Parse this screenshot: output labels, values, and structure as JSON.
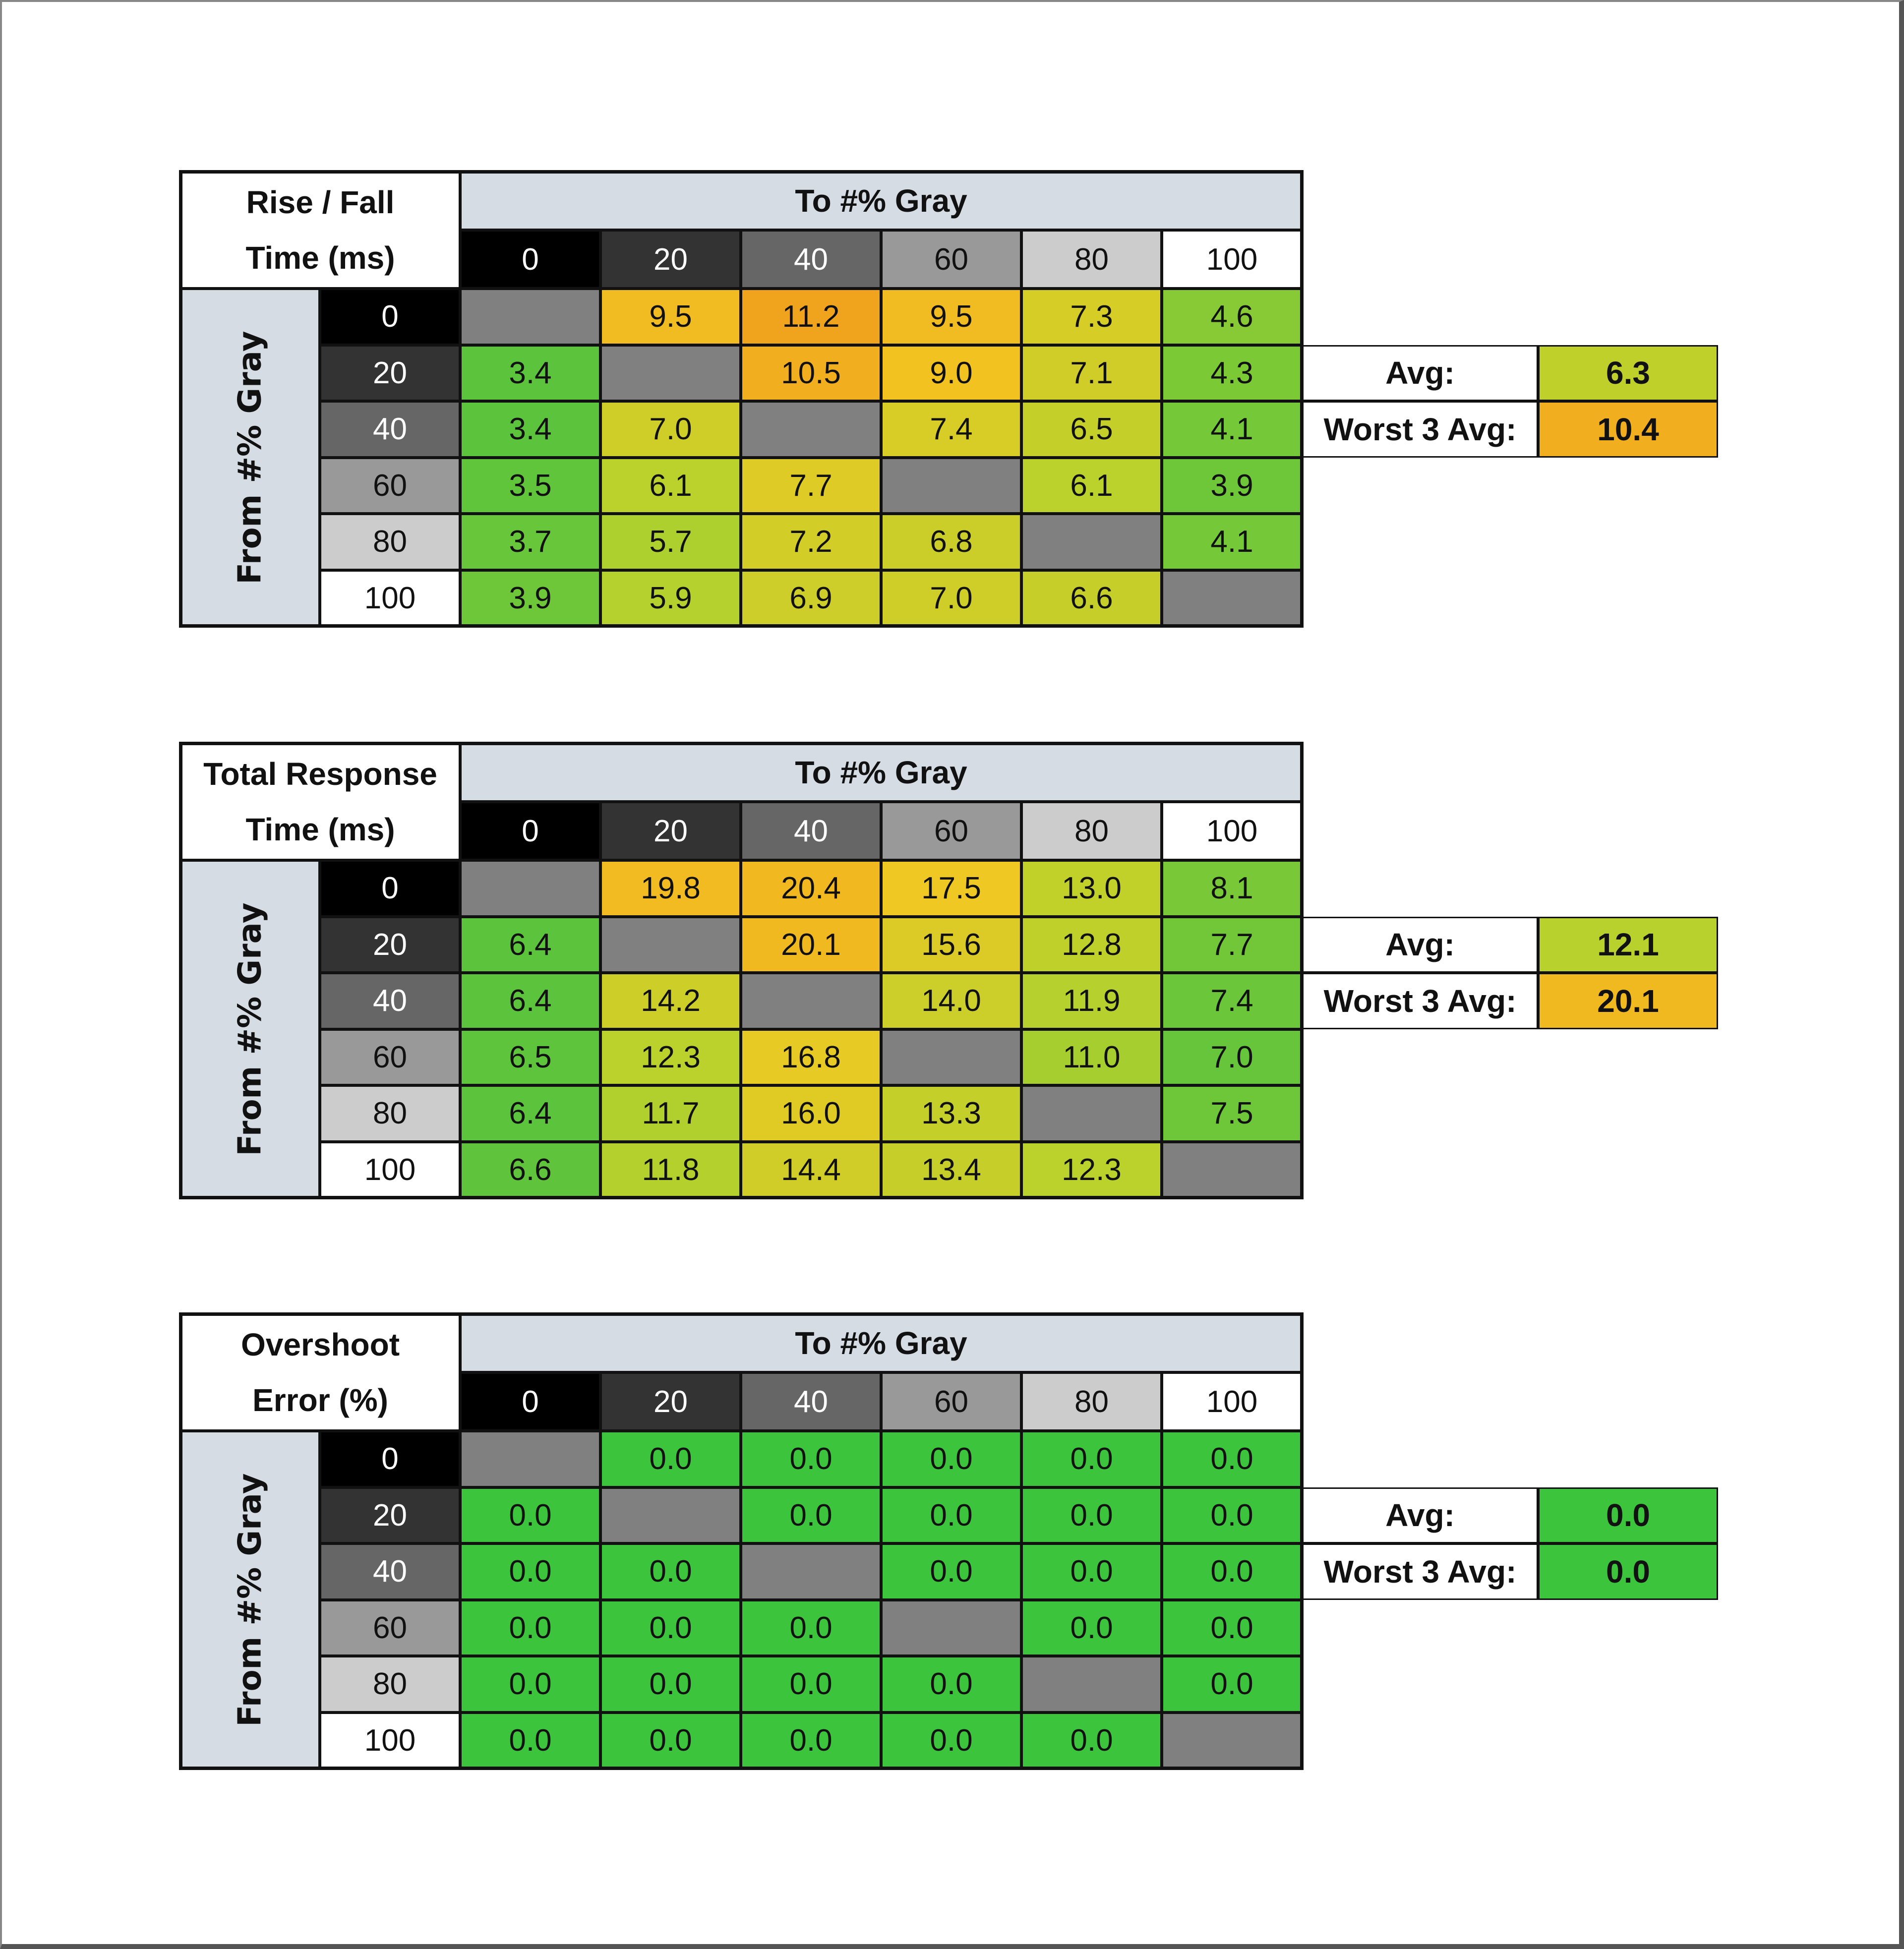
{
  "chart_data": [
    {
      "type": "table",
      "title_lines": [
        "Rise / Fall",
        "Time (ms)"
      ],
      "column_header": "To #% Gray",
      "row_header": "From #% Gray",
      "categories": [
        "0",
        "20",
        "40",
        "60",
        "80",
        "100"
      ],
      "values": [
        [
          null,
          9.5,
          11.2,
          9.5,
          7.3,
          4.6
        ],
        [
          3.4,
          null,
          10.5,
          9.0,
          7.1,
          4.3
        ],
        [
          3.4,
          7.0,
          null,
          7.4,
          6.5,
          4.1
        ],
        [
          3.5,
          6.1,
          7.7,
          null,
          6.1,
          3.9
        ],
        [
          3.7,
          5.7,
          7.2,
          6.8,
          null,
          4.1
        ],
        [
          3.9,
          5.9,
          6.9,
          7.0,
          6.6,
          null
        ]
      ],
      "summary": [
        {
          "label": "Avg:",
          "value": "6.3"
        },
        {
          "label": "Worst 3 Avg:",
          "value": "10.4"
        }
      ],
      "color_scale": {
        "min": 3.4,
        "max": 11.2
      }
    },
    {
      "type": "table",
      "title_lines": [
        "Total Response",
        "Time (ms)"
      ],
      "column_header": "To #% Gray",
      "row_header": "From #% Gray",
      "categories": [
        "0",
        "20",
        "40",
        "60",
        "80",
        "100"
      ],
      "values": [
        [
          null,
          19.8,
          20.4,
          17.5,
          13.0,
          8.1
        ],
        [
          6.4,
          null,
          20.1,
          15.6,
          12.8,
          7.7
        ],
        [
          6.4,
          14.2,
          null,
          14.0,
          11.9,
          7.4
        ],
        [
          6.5,
          12.3,
          16.8,
          null,
          11.0,
          7.0
        ],
        [
          6.4,
          11.7,
          16.0,
          13.3,
          null,
          7.5
        ],
        [
          6.6,
          11.8,
          14.4,
          13.4,
          12.3,
          null
        ]
      ],
      "summary": [
        {
          "label": "Avg:",
          "value": "12.1"
        },
        {
          "label": "Worst 3 Avg:",
          "value": "20.1"
        }
      ],
      "color_scale": {
        "min": 6.4,
        "max": 23.5
      }
    },
    {
      "type": "table",
      "title_lines": [
        "Overshoot",
        "Error (%)"
      ],
      "column_header": "To #% Gray",
      "row_header": "From #% Gray",
      "categories": [
        "0",
        "20",
        "40",
        "60",
        "80",
        "100"
      ],
      "values": [
        [
          null,
          0.0,
          0.0,
          0.0,
          0.0,
          0.0
        ],
        [
          0.0,
          null,
          0.0,
          0.0,
          0.0,
          0.0
        ],
        [
          0.0,
          0.0,
          null,
          0.0,
          0.0,
          0.0
        ],
        [
          0.0,
          0.0,
          0.0,
          null,
          0.0,
          0.0
        ],
        [
          0.0,
          0.0,
          0.0,
          0.0,
          null,
          0.0
        ],
        [
          0.0,
          0.0,
          0.0,
          0.0,
          0.0,
          null
        ]
      ],
      "summary": [
        {
          "label": "Avg:",
          "value": "0.0"
        },
        {
          "label": "Worst 3 Avg:",
          "value": "0.0"
        }
      ],
      "color_scale": {
        "min": 0,
        "max": 0,
        "fixed": "#3cc43c"
      }
    }
  ],
  "colors": {
    "scale_stops": [
      "#5cc43c",
      "#b9d12c",
      "#f2c822",
      "#f0a41e"
    ],
    "diagonal": "#808080",
    "header_bg": "#d6dce4",
    "gray_levels": [
      "#000000",
      "#333333",
      "#666666",
      "#999999",
      "#cccccc",
      "#ffffff"
    ]
  }
}
